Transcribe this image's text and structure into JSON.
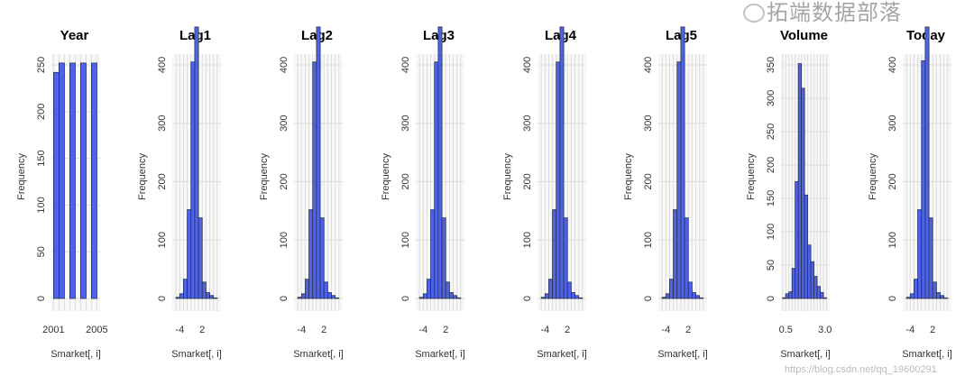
{
  "colors": {
    "bar": "#4f63e9",
    "bar_stroke": "#2a2f4a",
    "panel_bg": "#f7f8f7",
    "grid": "#dcdddc",
    "text": "#333333"
  },
  "watermark": {
    "text": "拓端数据部落",
    "url": "https://blog.csdn.net/qq_19600291"
  },
  "chart_data": [
    {
      "type": "bar",
      "title": "Year",
      "xlabel": "Smarket[, i]",
      "ylabel": "Frequency",
      "bin_start": 2001,
      "bin_width": 0.5,
      "values": [
        242,
        252,
        0,
        252,
        0,
        252,
        0,
        252
      ],
      "xlim": [
        2000.8,
        2005.3
      ],
      "xticks": [
        2001,
        2005
      ],
      "xtick_labels": [
        "2001",
        "2005"
      ],
      "ylim": [
        0,
        260
      ],
      "yticks": [
        0,
        50,
        100,
        150,
        200,
        250
      ],
      "ytick_labels": [
        "0",
        "50",
        "100",
        "150",
        "200",
        "250"
      ]
    },
    {
      "type": "bar",
      "title": "Lag1",
      "xlabel": "Smarket[, i]",
      "ylabel": "Frequency",
      "bin_start": -5,
      "bin_width": 1,
      "values": [
        2,
        8,
        33,
        152,
        405,
        465,
        138,
        28,
        10,
        5,
        1
      ],
      "xlim": [
        -6,
        7
      ],
      "xticks": [
        -4,
        2
      ],
      "xtick_labels": [
        "-4",
        "2"
      ],
      "ylim": [
        0,
        470
      ],
      "yticks": [
        0,
        100,
        200,
        300,
        400
      ],
      "ytick_labels": [
        "0",
        "100",
        "200",
        "300",
        "400"
      ]
    },
    {
      "type": "bar",
      "title": "Lag2",
      "xlabel": "Smarket[, i]",
      "ylabel": "Frequency",
      "bin_start": -5,
      "bin_width": 1,
      "values": [
        2,
        8,
        33,
        152,
        405,
        465,
        138,
        28,
        10,
        5,
        1
      ],
      "xlim": [
        -6,
        7
      ],
      "xticks": [
        -4,
        2
      ],
      "xtick_labels": [
        "-4",
        "2"
      ],
      "ylim": [
        0,
        470
      ],
      "yticks": [
        0,
        100,
        200,
        300,
        400
      ],
      "ytick_labels": [
        "0",
        "100",
        "200",
        "300",
        "400"
      ]
    },
    {
      "type": "bar",
      "title": "Lag3",
      "xlabel": "Smarket[, i]",
      "ylabel": "Frequency",
      "bin_start": -5,
      "bin_width": 1,
      "values": [
        2,
        8,
        33,
        152,
        405,
        465,
        138,
        28,
        10,
        5,
        1
      ],
      "xlim": [
        -6,
        7
      ],
      "xticks": [
        -4,
        2
      ],
      "xtick_labels": [
        "-4",
        "2"
      ],
      "ylim": [
        0,
        470
      ],
      "yticks": [
        0,
        100,
        200,
        300,
        400
      ],
      "ytick_labels": [
        "0",
        "100",
        "200",
        "300",
        "400"
      ]
    },
    {
      "type": "bar",
      "title": "Lag4",
      "xlabel": "Smarket[, i]",
      "ylabel": "Frequency",
      "bin_start": -5,
      "bin_width": 1,
      "values": [
        2,
        8,
        33,
        152,
        405,
        465,
        138,
        28,
        10,
        5,
        1
      ],
      "xlim": [
        -6,
        7
      ],
      "xticks": [
        -4,
        2
      ],
      "xtick_labels": [
        "-4",
        "2"
      ],
      "ylim": [
        0,
        470
      ],
      "yticks": [
        0,
        100,
        200,
        300,
        400
      ],
      "ytick_labels": [
        "0",
        "100",
        "200",
        "300",
        "400"
      ]
    },
    {
      "type": "bar",
      "title": "Lag5",
      "xlabel": "Smarket[, i]",
      "ylabel": "Frequency",
      "bin_start": -5,
      "bin_width": 1,
      "values": [
        2,
        8,
        33,
        152,
        405,
        465,
        138,
        28,
        10,
        5,
        1
      ],
      "xlim": [
        -6,
        7
      ],
      "xticks": [
        -4,
        2
      ],
      "xtick_labels": [
        "-4",
        "2"
      ],
      "ylim": [
        0,
        470
      ],
      "yticks": [
        0,
        100,
        200,
        300,
        400
      ],
      "ytick_labels": [
        "0",
        "100",
        "200",
        "300",
        "400"
      ]
    },
    {
      "type": "bar",
      "title": "Volume",
      "xlabel": "Smarket[, i]",
      "ylabel": "Frequency",
      "bin_start": 0.3,
      "bin_width": 0.2,
      "values": [
        1,
        7,
        10,
        45,
        175,
        352,
        315,
        155,
        80,
        55,
        33,
        18,
        9,
        1
      ],
      "xlim": [
        0.2,
        3.3
      ],
      "xticks": [
        0.5,
        3.0
      ],
      "xtick_labels": [
        "0.5",
        "3.0"
      ],
      "ylim": [
        0,
        360
      ],
      "yticks": [
        0,
        50,
        100,
        150,
        200,
        250,
        300,
        350
      ],
      "ytick_labels": [
        "0",
        "50",
        "100",
        "150",
        "200",
        "250",
        "300",
        "350"
      ]
    },
    {
      "type": "bar",
      "title": "Today",
      "xlabel": "Smarket[, i]",
      "ylabel": "Frequency",
      "bin_start": -5,
      "bin_width": 1,
      "values": [
        2,
        8,
        33,
        152,
        407,
        465,
        138,
        28,
        10,
        5,
        1
      ],
      "xlim": [
        -6,
        7
      ],
      "xticks": [
        -4,
        2
      ],
      "xtick_labels": [
        "-4",
        "2"
      ],
      "ylim": [
        0,
        470
      ],
      "yticks": [
        0,
        100,
        200,
        300,
        400
      ],
      "ytick_labels": [
        "0",
        "100",
        "200",
        "300",
        "400"
      ]
    }
  ]
}
